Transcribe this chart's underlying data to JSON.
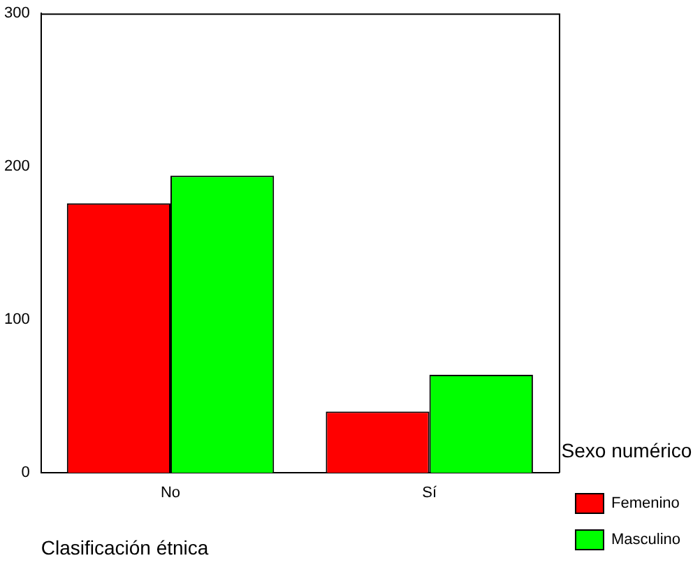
{
  "chart_data": {
    "type": "bar",
    "xlabel": "Clasificación étnica",
    "legend_title": "Sexo numérico",
    "categories": [
      "No",
      "Sí"
    ],
    "series": [
      {
        "name": "Femenino",
        "color": "#ff0000",
        "values": [
          176,
          40
        ]
      },
      {
        "name": "Masculino",
        "color": "#00ff00",
        "values": [
          194,
          64
        ]
      }
    ],
    "ylim": [
      0,
      300
    ],
    "yticks": [
      0,
      100,
      200,
      300
    ],
    "grid": false,
    "legend": "right"
  }
}
